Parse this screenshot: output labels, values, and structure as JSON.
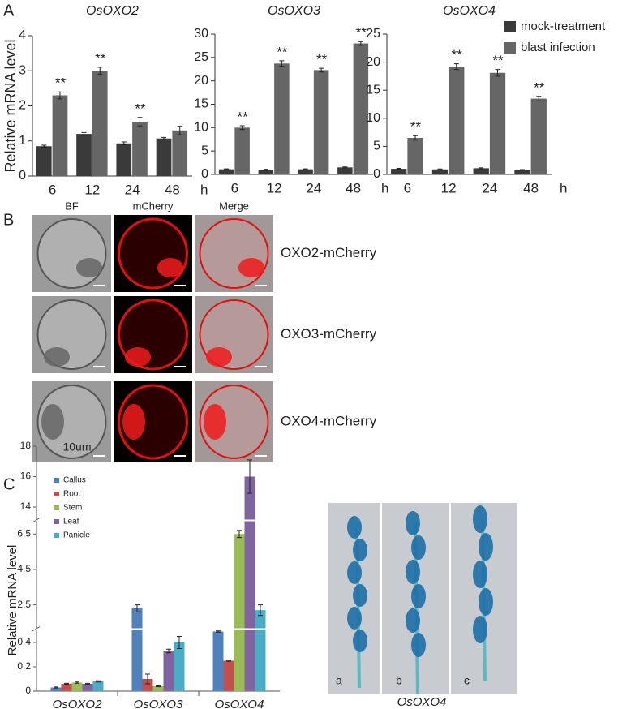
{
  "panel_labels": [
    "A",
    "B",
    "C"
  ],
  "chart_data": [
    {
      "type": "bar",
      "title": "OsOXO2",
      "y_label": "Relative mRNA level",
      "x_label": "h",
      "categories": [
        "6",
        "12",
        "24",
        "48"
      ],
      "series": [
        {
          "name": "mock-treatment",
          "color": "#3a3a3a",
          "values": [
            0.85,
            1.2,
            0.93,
            1.07
          ],
          "errors": [
            0.03,
            0.04,
            0.04,
            0.03
          ]
        },
        {
          "name": "blast infection",
          "color": "#666666",
          "values": [
            2.3,
            3.0,
            1.55,
            1.3
          ],
          "errors": [
            0.1,
            0.1,
            0.12,
            0.12
          ]
        }
      ],
      "annotations": [
        "**",
        "**",
        "**",
        null
      ],
      "ylim": [
        0,
        4
      ],
      "yticks": [
        0,
        1,
        2,
        3,
        4
      ]
    },
    {
      "type": "bar",
      "title": "OsOXO3",
      "x_label": "h",
      "categories": [
        "6",
        "12",
        "24",
        "48"
      ],
      "series": [
        {
          "name": "mock-treatment",
          "color": "#3a3a3a",
          "values": [
            1.1,
            1.0,
            1.1,
            1.5
          ],
          "errors": [
            0.1,
            0.1,
            0.1,
            0.1
          ]
        },
        {
          "name": "blast infection",
          "color": "#666666",
          "values": [
            10,
            23.7,
            22.3,
            28
          ],
          "errors": [
            0.4,
            0.6,
            0.4,
            0.4
          ]
        }
      ],
      "annotations": [
        "**",
        "**",
        "**",
        "**"
      ],
      "ylim": [
        0,
        30
      ],
      "yticks": [
        0,
        5,
        10,
        15,
        20,
        25,
        30
      ]
    },
    {
      "type": "bar",
      "title": "OsOXO4",
      "x_label": "h",
      "legend": "top-right",
      "categories": [
        "6",
        "12",
        "24",
        "48"
      ],
      "series": [
        {
          "name": "mock-treatment",
          "color": "#3a3a3a",
          "values": [
            1.0,
            0.9,
            1.1,
            0.8
          ],
          "errors": [
            0.08,
            0.08,
            0.08,
            0.06
          ]
        },
        {
          "name": "blast infection",
          "color": "#666666",
          "values": [
            6.5,
            19.2,
            18.1,
            13.5
          ],
          "errors": [
            0.4,
            0.5,
            0.6,
            0.4
          ]
        }
      ],
      "annotations": [
        "**",
        "**",
        "**",
        "**"
      ],
      "ylim": [
        0,
        25
      ],
      "yticks": [
        0,
        5,
        10,
        15,
        20,
        25
      ]
    },
    {
      "type": "broken-bar",
      "y_label": "Relative mRNA level",
      "legend": "top-left",
      "categories": [
        "OsOXO2",
        "OsOXO3",
        "OsOXO4"
      ],
      "series": [
        {
          "name": "Callus",
          "color": "#4f81bd",
          "values": [
            0.03,
            2.3,
            0.49
          ],
          "errors": [
            0.004,
            0.2,
            0.005
          ]
        },
        {
          "name": "Root",
          "color": "#c0504d",
          "values": [
            0.06,
            0.1,
            0.25
          ],
          "errors": [
            0.004,
            0.04,
            0.004
          ]
        },
        {
          "name": "Stem",
          "color": "#9bbb59",
          "values": [
            0.07,
            0.04,
            6.5
          ],
          "errors": [
            0.005,
            0.004,
            0.2
          ]
        },
        {
          "name": "Leaf",
          "color": "#8064a2",
          "values": [
            0.06,
            0.33,
            16
          ],
          "errors": [
            0.004,
            0.015,
            1.1
          ]
        },
        {
          "name": "Panicle",
          "color": "#4bacc6",
          "values": [
            0.08,
            0.4,
            2.2
          ],
          "errors": [
            0.005,
            0.05,
            0.3
          ]
        }
      ],
      "y_segments": [
        {
          "ylim": [
            0,
            0.5
          ],
          "yticks": [
            0,
            0.2,
            0.4
          ]
        },
        {
          "ylim": [
            1.2,
            7.2
          ],
          "yticks": [
            2.5,
            4.5,
            6.5
          ]
        },
        {
          "ylim": [
            13.2,
            18
          ],
          "yticks": [
            14,
            16,
            18
          ]
        }
      ]
    }
  ],
  "microscopy": {
    "columns": [
      "BF",
      "mCherry",
      "Merge"
    ],
    "rows": [
      "OXO2-mCherry",
      "OXO3-mCherry",
      "OXO4-mCherry"
    ],
    "scale_bar": "10um"
  },
  "gus": {
    "strips": [
      "a",
      "b",
      "c"
    ],
    "caption": "OsOXO4"
  }
}
